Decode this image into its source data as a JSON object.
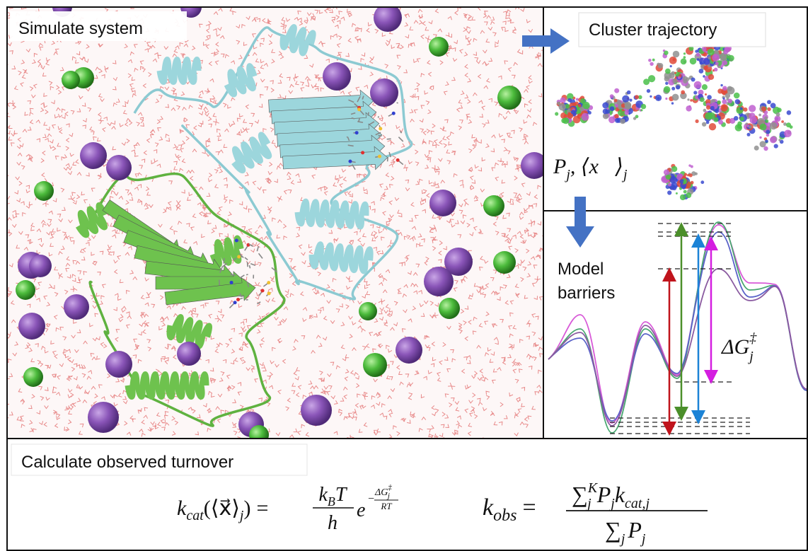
{
  "panels": {
    "simulate": {
      "title": "Simulate system"
    },
    "cluster": {
      "title": "Cluster trajectory",
      "label": {
        "p": "P",
        "p_sub": "j",
        "sep": ", ",
        "x": "⟨x⃗⟩",
        "x_sub": "j"
      }
    },
    "barriers": {
      "title_line1": "Model",
      "title_line2": "barriers",
      "label": {
        "dg": "ΔG",
        "dg_sup": "‡",
        "dg_sub": "j"
      }
    },
    "turnover": {
      "title": "Calculate observed turnover"
    }
  },
  "equations": {
    "kcat": {
      "lhs": "k",
      "lhs_sub": "cat",
      "arg": "(⟨x⃗⟩",
      "arg_sub": "j",
      "arg_close": ")",
      "eq": "=",
      "num_k": "k",
      "num_sub": "B",
      "num_t": "T",
      "den": "h",
      "exp_base": "e",
      "exp_minus": "−",
      "exp_num": "ΔG",
      "exp_sup": "‡",
      "exp_sub": "j",
      "exp_den": "RT"
    },
    "kobs": {
      "lhs": "k",
      "lhs_sub": "obs",
      "eq": "=",
      "num_sum": "∑",
      "num_sum_sub": "j",
      "num_sum_sup": "K",
      "num_p": "P",
      "num_p_sub": "j",
      "num_k": "k",
      "num_k_sub": "cat,j",
      "den_sum": "∑",
      "den_sum_sub": "j",
      "den_p": "P",
      "den_p_sub": "j"
    }
  }
}
